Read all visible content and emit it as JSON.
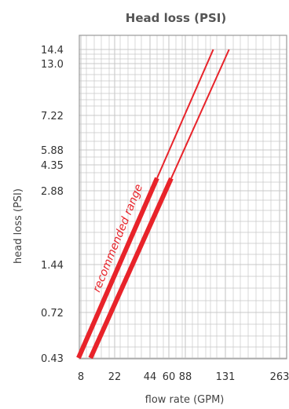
{
  "chart_data": {
    "type": "line",
    "title": "Head loss (PSI)",
    "xlabel": "flow rate (GPM)",
    "ylabel": "head loss (PSI)",
    "x_tick_labels": [
      "8",
      "22",
      "44",
      "60",
      "88",
      "131",
      "263"
    ],
    "y_tick_labels": [
      "0.43",
      "0.72",
      "1.44",
      "2.88",
      "4.35",
      "5.88",
      "7.22",
      "13.0",
      "14.4"
    ],
    "ylim": [
      0.43,
      14.4
    ],
    "grid": true,
    "annotation": "recommended range",
    "colors": {
      "series": "#e8232a",
      "grid": "#c8c8c8",
      "frame": "#9a9a9a"
    },
    "series": [
      {
        "points": [
          {
            "x": 7,
            "y": 0.43
          },
          {
            "x": 12,
            "y": 0.72
          },
          {
            "x": 22,
            "y": 1.44
          },
          {
            "x": 38,
            "y": 2.88
          },
          {
            "x": 45,
            "y": 4.35
          },
          {
            "x": 50,
            "y": 5.88
          },
          {
            "x": 70,
            "y": 7.22
          },
          {
            "x": 110,
            "y": 13.0
          },
          {
            "x": 118,
            "y": 14.4
          }
        ],
        "recommended_max_x": 50
      },
      {
        "points": [
          {
            "x": 12,
            "y": 0.43
          },
          {
            "x": 20,
            "y": 0.72
          },
          {
            "x": 33,
            "y": 1.44
          },
          {
            "x": 50,
            "y": 2.88
          },
          {
            "x": 58,
            "y": 4.35
          },
          {
            "x": 64,
            "y": 5.88
          },
          {
            "x": 90,
            "y": 7.22
          },
          {
            "x": 132,
            "y": 13.0
          },
          {
            "x": 140,
            "y": 14.4
          }
        ],
        "recommended_max_x": 64
      }
    ]
  }
}
